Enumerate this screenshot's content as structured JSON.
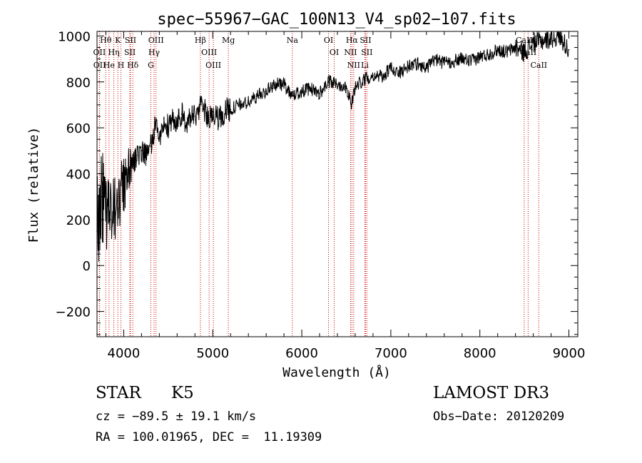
{
  "chart_data": {
    "type": "line",
    "title": "spec−55967−GAC_100N13_V4_sp02−107.fits",
    "xlabel": "Wavelength (Å)",
    "ylabel": "Flux (relative)",
    "xlim": [
      3700,
      9100
    ],
    "ylim": [
      -310,
      1020
    ],
    "xticks": [
      4000,
      5000,
      6000,
      7000,
      8000,
      9000
    ],
    "xtick_labels": [
      "4000",
      "5000",
      "6000",
      "7000",
      "8000",
      "9000"
    ],
    "yticks": [
      -200,
      0,
      200,
      400,
      600,
      800,
      1000
    ],
    "ytick_labels": [
      "−200",
      "0",
      "200",
      "400",
      "600",
      "800",
      "1000"
    ],
    "series": [
      {
        "name": "flux",
        "x": [
          3700,
          3750,
          3800,
          3850,
          3900,
          3950,
          4000,
          4050,
          4100,
          4150,
          4200,
          4250,
          4300,
          4350,
          4400,
          4450,
          4500,
          4550,
          4600,
          4650,
          4700,
          4750,
          4800,
          4850,
          4900,
          4950,
          5000,
          5050,
          5100,
          5150,
          5200,
          5300,
          5400,
          5500,
          5600,
          5700,
          5800,
          5900,
          6000,
          6100,
          6200,
          6300,
          6400,
          6500,
          6560,
          6600,
          6700,
          6800,
          6900,
          7000,
          7100,
          7200,
          7300,
          7400,
          7500,
          7600,
          7700,
          7800,
          7900,
          8000,
          8100,
          8200,
          8300,
          8400,
          8500,
          8600,
          8700,
          8800,
          8900,
          9000
        ],
        "y": [
          150,
          300,
          250,
          200,
          250,
          300,
          350,
          400,
          450,
          480,
          500,
          480,
          520,
          600,
          560,
          640,
          600,
          640,
          620,
          660,
          620,
          640,
          650,
          690,
          680,
          640,
          670,
          640,
          650,
          680,
          680,
          700,
          710,
          740,
          760,
          790,
          790,
          740,
          760,
          770,
          750,
          800,
          790,
          780,
          700,
          780,
          810,
          830,
          820,
          860,
          840,
          870,
          880,
          860,
          900,
          880,
          890,
          900,
          890,
          910,
          920,
          940,
          930,
          950,
          930,
          970,
          980,
          990,
          1000,
          940
        ]
      }
    ],
    "line_markers": [
      {
        "label": "Hθ",
        "x": 3798
      },
      {
        "label": "OII",
        "x": 3727
      },
      {
        "label": "OII",
        "x": 3729
      },
      {
        "label": "He",
        "x": 3835
      },
      {
        "label": "Hη",
        "x": 3889
      },
      {
        "label": "K",
        "x": 3934
      },
      {
        "label": "H",
        "x": 3969
      },
      {
        "label": "SII",
        "x": 4069
      },
      {
        "label": "SII",
        "x": 4076
      },
      {
        "label": "Hδ",
        "x": 4102
      },
      {
        "label": "OIII",
        "x": 4363
      },
      {
        "label": "Hγ",
        "x": 4341
      },
      {
        "label": "G",
        "x": 4305
      },
      {
        "label": "Hβ",
        "x": 4861
      },
      {
        "label": "OIII",
        "x": 4959
      },
      {
        "label": "OIII",
        "x": 5007
      },
      {
        "label": "Mg",
        "x": 5175
      },
      {
        "label": "Na",
        "x": 5894
      },
      {
        "label": "OI",
        "x": 6300
      },
      {
        "label": "OI",
        "x": 6364
      },
      {
        "label": "Hα",
        "x": 6563
      },
      {
        "label": "NII",
        "x": 6548
      },
      {
        "label": "NII",
        "x": 6583
      },
      {
        "label": "SII",
        "x": 6716
      },
      {
        "label": "SII",
        "x": 6731
      },
      {
        "label": "Li",
        "x": 6708
      },
      {
        "label": "CaII",
        "x": 8498
      },
      {
        "label": "CaII",
        "x": 8542
      },
      {
        "label": "CaII",
        "x": 8662
      }
    ]
  },
  "annotations": {
    "object_class": "STAR",
    "subclass": "K5",
    "redshift": "cz = −89.5 ± 19.1 km/s",
    "coordinates": "RA = 100.01965, DEC =  11.19309",
    "survey": "LAMOST DR3",
    "obs_date": "Obs−Date: 20120209"
  },
  "colors": {
    "spectrum": "#000000",
    "marker": "#cc0000",
    "axes": "#000000",
    "background": "#ffffff"
  }
}
